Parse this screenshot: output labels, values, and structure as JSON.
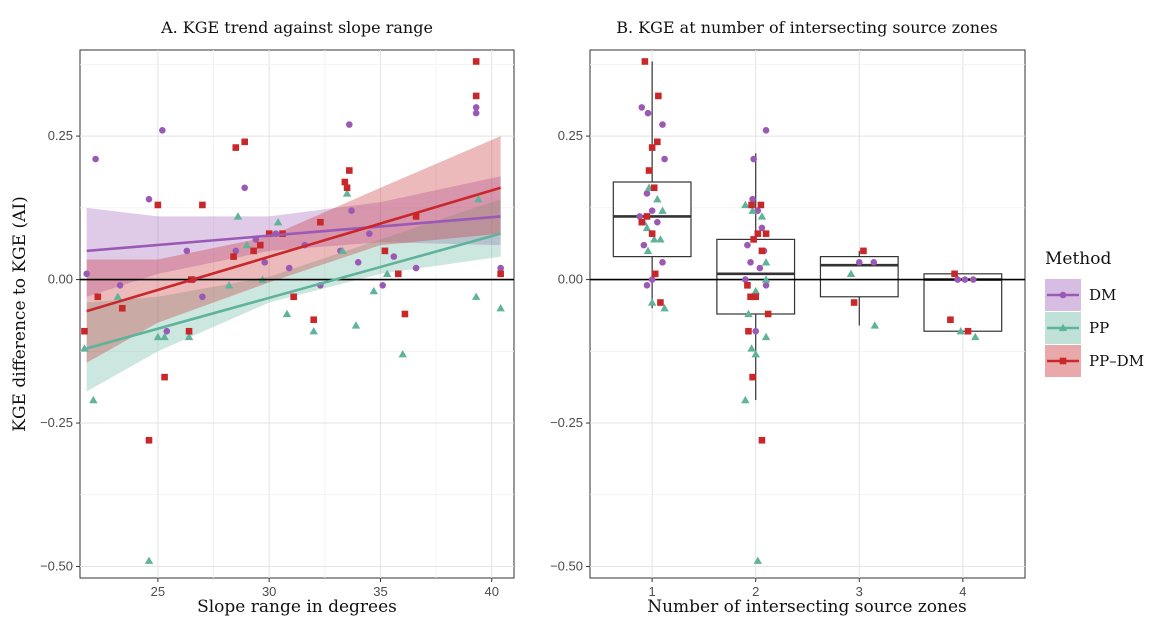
{
  "colors": {
    "DM": "#9b59b6",
    "PP": "#5fb39a",
    "PP-DM": "#c8282a"
  },
  "ylabel": "KGE difference to KGE (AI)",
  "legend": {
    "title": "Method",
    "placement": "right",
    "entries": [
      {
        "name": "DM",
        "shape": "circle"
      },
      {
        "name": "PP",
        "shape": "triangle"
      },
      {
        "name": "PP–DM",
        "shape": "square"
      }
    ]
  },
  "chart_data": [
    {
      "type": "scatter",
      "title": "A. KGE trend against slope range",
      "xlabel": "Slope range in degrees",
      "xlim": [
        21.5,
        41
      ],
      "ylim": [
        -0.52,
        0.4
      ],
      "xticks": [
        "25",
        "30",
        "35",
        "40"
      ],
      "yticks": [
        "0.25",
        "0.00",
        "−0.25",
        "−0.50"
      ],
      "hline": 0,
      "grid": true,
      "series": [
        {
          "name": "DM",
          "points": [
            [
              21.8,
              0.01
            ],
            [
              22.2,
              0.21
            ],
            [
              23.3,
              -0.01
            ],
            [
              24.6,
              0.14
            ],
            [
              25.2,
              0.26
            ],
            [
              25.4,
              -0.09
            ],
            [
              26.3,
              0.05
            ],
            [
              26.6,
              0.0
            ],
            [
              27.0,
              -0.03
            ],
            [
              28.5,
              0.05
            ],
            [
              28.9,
              0.16
            ],
            [
              29.4,
              0.07
            ],
            [
              29.8,
              0.03
            ],
            [
              30.3,
              0.08
            ],
            [
              30.9,
              0.02
            ],
            [
              31.6,
              0.06
            ],
            [
              32.3,
              -0.01
            ],
            [
              33.2,
              0.05
            ],
            [
              33.6,
              0.27
            ],
            [
              33.7,
              0.12
            ],
            [
              34.0,
              0.03
            ],
            [
              34.5,
              0.08
            ],
            [
              35.1,
              -0.01
            ],
            [
              35.6,
              0.04
            ],
            [
              36.6,
              0.02
            ],
            [
              39.3,
              0.29
            ],
            [
              39.3,
              0.3
            ],
            [
              40.4,
              0.02
            ]
          ],
          "trend": [
            [
              21.8,
              0.05
            ],
            [
              40.4,
              0.11
            ]
          ],
          "band": [
            [
              21.8,
              -0.03,
              0.125
            ],
            [
              25,
              0.01,
              0.11
            ],
            [
              30,
              0.05,
              0.11
            ],
            [
              35,
              0.065,
              0.135
            ],
            [
              40.4,
              0.06,
              0.18
            ]
          ]
        },
        {
          "name": "PP",
          "points": [
            [
              21.7,
              -0.12
            ],
            [
              22.1,
              -0.21
            ],
            [
              23.2,
              -0.03
            ],
            [
              24.6,
              -0.49
            ],
            [
              25.0,
              -0.1
            ],
            [
              25.3,
              -0.1
            ],
            [
              26.4,
              -0.1
            ],
            [
              28.2,
              -0.01
            ],
            [
              28.6,
              0.11
            ],
            [
              29.0,
              0.06
            ],
            [
              29.7,
              0.0
            ],
            [
              30.4,
              0.1
            ],
            [
              30.8,
              -0.06
            ],
            [
              32.0,
              -0.09
            ],
            [
              33.3,
              0.05
            ],
            [
              33.5,
              0.15
            ],
            [
              33.9,
              -0.08
            ],
            [
              34.7,
              -0.02
            ],
            [
              35.3,
              0.01
            ],
            [
              36.0,
              -0.13
            ],
            [
              39.3,
              -0.03
            ],
            [
              39.4,
              0.14
            ],
            [
              40.4,
              -0.05
            ]
          ],
          "trend": [
            [
              21.8,
              -0.12
            ],
            [
              40.4,
              0.08
            ]
          ],
          "band": [
            [
              21.8,
              -0.195,
              -0.04
            ],
            [
              25,
              -0.125,
              -0.03
            ],
            [
              30,
              -0.04,
              0.005
            ],
            [
              35,
              0.01,
              0.07
            ],
            [
              40.4,
              0.04,
              0.14
            ]
          ]
        },
        {
          "name": "PP–DM",
          "points": [
            [
              21.7,
              -0.09
            ],
            [
              22.3,
              -0.03
            ],
            [
              23.4,
              -0.05
            ],
            [
              24.6,
              -0.28
            ],
            [
              25.0,
              0.13
            ],
            [
              25.3,
              -0.17
            ],
            [
              26.4,
              -0.09
            ],
            [
              26.5,
              0.0
            ],
            [
              27.0,
              0.13
            ],
            [
              28.4,
              0.04
            ],
            [
              28.5,
              0.23
            ],
            [
              28.9,
              0.24
            ],
            [
              29.3,
              0.05
            ],
            [
              29.6,
              0.06
            ],
            [
              30.0,
              0.08
            ],
            [
              30.6,
              0.08
            ],
            [
              31.1,
              -0.03
            ],
            [
              32.0,
              -0.07
            ],
            [
              32.3,
              0.1
            ],
            [
              33.4,
              0.17
            ],
            [
              33.5,
              0.16
            ],
            [
              33.6,
              0.19
            ],
            [
              35.2,
              0.05
            ],
            [
              35.8,
              0.01
            ],
            [
              36.1,
              -0.06
            ],
            [
              36.6,
              0.11
            ],
            [
              39.3,
              0.38
            ],
            [
              39.3,
              0.32
            ],
            [
              40.4,
              0.01
            ]
          ],
          "trend": [
            [
              21.8,
              -0.055
            ],
            [
              40.4,
              0.16
            ]
          ],
          "band": [
            [
              21.8,
              -0.145,
              0.035
            ],
            [
              25,
              -0.075,
              0.035
            ],
            [
              30,
              -0.005,
              0.075
            ],
            [
              35,
              0.06,
              0.16
            ],
            [
              40.4,
              0.08,
              0.25
            ]
          ]
        }
      ]
    },
    {
      "type": "box",
      "title": "B. KGE at number of intersecting source zones",
      "xlabel": "Number of intersecting source zones",
      "categories": [
        "1",
        "2",
        "3",
        "4"
      ],
      "ylim": [
        -0.52,
        0.4
      ],
      "yticks": [
        "0.25",
        "0.00",
        "−0.25",
        "−0.50"
      ],
      "hline": 0,
      "grid": true,
      "boxes": [
        {
          "category": "1",
          "min": -0.05,
          "q1": 0.04,
          "median": 0.11,
          "q3": 0.17,
          "max": 0.38
        },
        {
          "category": "2",
          "min": -0.21,
          "q1": -0.06,
          "median": 0.01,
          "q3": 0.07,
          "max": 0.22
        },
        {
          "category": "3",
          "min": -0.08,
          "q1": -0.03,
          "median": 0.025,
          "q3": 0.04,
          "max": 0.05
        },
        {
          "category": "4",
          "min": -0.09,
          "q1": -0.09,
          "median": 0.0,
          "q3": 0.01,
          "max": 0.01
        }
      ],
      "series": [
        {
          "name": "DM",
          "points": [
            [
              0.9,
              0.3
            ],
            [
              0.96,
              0.29
            ],
            [
              1.1,
              0.27
            ],
            [
              1.12,
              0.21
            ],
            [
              0.95,
              0.15
            ],
            [
              1.0,
              0.12
            ],
            [
              0.88,
              0.11
            ],
            [
              1.05,
              0.1
            ],
            [
              0.92,
              0.06
            ],
            [
              1.1,
              0.03
            ],
            [
              0.95,
              -0.01
            ],
            [
              1.0,
              0.0
            ],
            [
              1.98,
              0.21
            ],
            [
              2.1,
              0.26
            ],
            [
              1.97,
              0.14
            ],
            [
              2.02,
              0.12
            ],
            [
              2.06,
              0.09
            ],
            [
              1.92,
              0.06
            ],
            [
              1.95,
              0.03
            ],
            [
              2.08,
              0.05
            ],
            [
              2.04,
              0.02
            ],
            [
              2.1,
              -0.01
            ],
            [
              1.9,
              0.0
            ],
            [
              2.0,
              -0.09
            ],
            [
              3.0,
              0.03
            ],
            [
              3.14,
              0.03
            ],
            [
              3.95,
              0.0
            ],
            [
              4.02,
              0.0
            ],
            [
              4.1,
              0.0
            ]
          ]
        },
        {
          "name": "PP",
          "points": [
            [
              0.97,
              0.16
            ],
            [
              1.05,
              0.14
            ],
            [
              1.1,
              0.12
            ],
            [
              0.92,
              0.1
            ],
            [
              1.08,
              0.07
            ],
            [
              1.02,
              0.07
            ],
            [
              0.96,
              0.05
            ],
            [
              1.12,
              -0.05
            ],
            [
              1.0,
              -0.04
            ],
            [
              0.95,
              0.09
            ],
            [
              1.9,
              0.13
            ],
            [
              1.97,
              0.12
            ],
            [
              2.06,
              0.11
            ],
            [
              2.1,
              0.03
            ],
            [
              2.0,
              -0.02
            ],
            [
              1.93,
              -0.06
            ],
            [
              2.1,
              -0.1
            ],
            [
              1.96,
              -0.12
            ],
            [
              2.0,
              -0.13
            ],
            [
              1.9,
              -0.21
            ],
            [
              2.02,
              -0.49
            ],
            [
              2.1,
              0.0
            ],
            [
              2.92,
              0.01
            ],
            [
              3.15,
              -0.08
            ],
            [
              3.98,
              -0.09
            ],
            [
              4.12,
              -0.1
            ]
          ]
        },
        {
          "name": "PP–DM",
          "points": [
            [
              0.93,
              0.38
            ],
            [
              1.06,
              0.32
            ],
            [
              1.05,
              0.24
            ],
            [
              1.0,
              0.23
            ],
            [
              0.97,
              0.19
            ],
            [
              1.02,
              0.16
            ],
            [
              0.95,
              0.11
            ],
            [
              0.9,
              0.1
            ],
            [
              1.0,
              0.08
            ],
            [
              1.03,
              0.01
            ],
            [
              1.08,
              -0.04
            ],
            [
              1.96,
              0.13
            ],
            [
              2.05,
              0.13
            ],
            [
              2.02,
              0.08
            ],
            [
              2.1,
              0.08
            ],
            [
              2.06,
              0.05
            ],
            [
              1.98,
              0.07
            ],
            [
              1.92,
              -0.01
            ],
            [
              1.95,
              -0.03
            ],
            [
              2.0,
              -0.03
            ],
            [
              2.12,
              -0.06
            ],
            [
              1.93,
              -0.09
            ],
            [
              1.97,
              -0.17
            ],
            [
              2.06,
              -0.28
            ],
            [
              2.95,
              -0.04
            ],
            [
              3.04,
              0.05
            ],
            [
              3.92,
              0.01
            ],
            [
              3.88,
              -0.07
            ],
            [
              4.05,
              -0.09
            ]
          ]
        }
      ]
    }
  ]
}
